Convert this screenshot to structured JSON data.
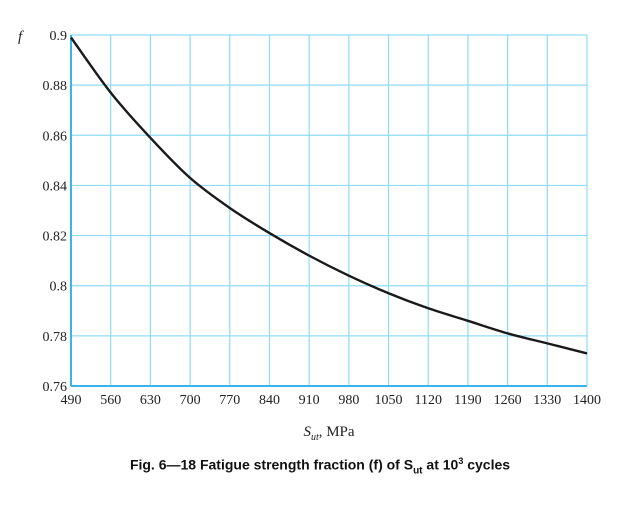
{
  "chart_data": {
    "type": "line",
    "caption": "Fig. 6—18 Fatigue strength fraction (f) of Sut at 10³ cycles",
    "caption_parts": {
      "pre": "Fig. 6—18 Fatigue strength fraction (f) of S",
      "sub": "ut",
      "mid": " at 10",
      "sup": "3",
      "post": " cycles"
    },
    "ylabel": "f",
    "xlabel": {
      "main": "S",
      "sub": "ut",
      "rest": ", MPa"
    },
    "xlim": [
      490,
      1400
    ],
    "ylim": [
      0.76,
      0.9
    ],
    "grid": true,
    "colors": {
      "grid": "#8fdcf5",
      "axis": "#3ab4ea",
      "line": "#1a1a1a"
    },
    "x_ticks": [
      "490",
      "560",
      "630",
      "700",
      "770",
      "840",
      "910",
      "980",
      "1050",
      "1120",
      "1190",
      "1260",
      "1330",
      "1400"
    ],
    "y_ticks": [
      "0.76",
      "0.78",
      "0.8",
      "0.82",
      "0.84",
      "0.86",
      "0.88",
      "0.9"
    ],
    "series": [
      {
        "x": [
          490,
          560,
          630,
          700,
          770,
          840,
          910,
          980,
          1050,
          1120,
          1190,
          1260,
          1330,
          1400
        ],
        "y": [
          0.899,
          0.877,
          0.859,
          0.843,
          0.831,
          0.821,
          0.812,
          0.804,
          0.797,
          0.791,
          0.786,
          0.781,
          0.777,
          0.773
        ]
      }
    ]
  }
}
